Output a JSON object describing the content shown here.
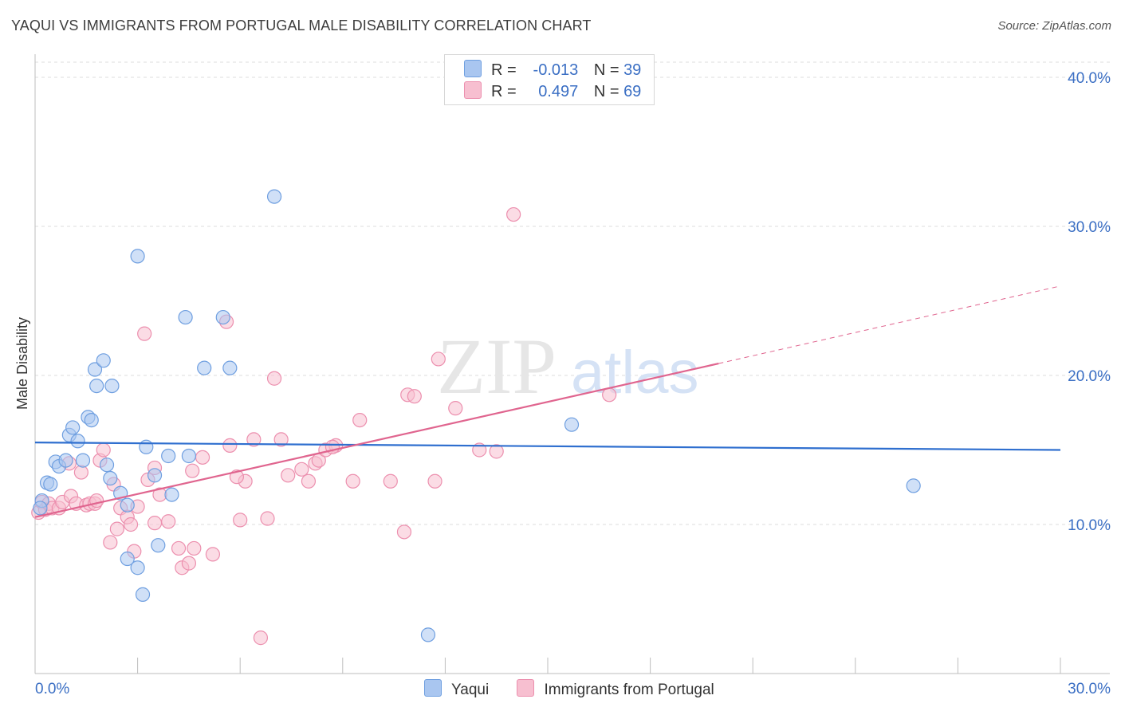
{
  "title": "YAQUI VS IMMIGRANTS FROM PORTUGAL MALE DISABILITY CORRELATION CHART",
  "source": "Source: ZipAtlas.com",
  "watermark": {
    "zip": "ZIP",
    "atlas": "atlas"
  },
  "legend": {
    "rows": [
      {
        "r_label": "R =",
        "r_value": "-0.013",
        "n_label": "N =",
        "n_value": "39",
        "color": "#a9c6f0",
        "border": "#6f9fe0"
      },
      {
        "r_label": "R =",
        "r_value": "0.497",
        "n_label": "N =",
        "n_value": "69",
        "color": "#f7bfd0",
        "border": "#ec8fae"
      }
    ]
  },
  "bottom_legend": [
    {
      "label": "Yaqui",
      "color": "#a9c6f0",
      "border": "#6f9fe0"
    },
    {
      "label": "Immigrants from Portugal",
      "color": "#f7bfd0",
      "border": "#ec8fae"
    }
  ],
  "chart_data": {
    "type": "scatter",
    "title": "YAQUI VS IMMIGRANTS FROM PORTUGAL MALE DISABILITY CORRELATION CHART",
    "xlabel": "",
    "ylabel": "Male Disability",
    "xlim": [
      0,
      30
    ],
    "ylim": [
      0,
      40
    ],
    "x_tick_labels": [
      "0.0%",
      "30.0%"
    ],
    "y_tick_labels": [
      "10.0%",
      "20.0%",
      "30.0%",
      "40.0%"
    ],
    "y_ticks": [
      10,
      20,
      30,
      40
    ],
    "grid": true,
    "series": [
      {
        "name": "Yaqui",
        "color": "#6f9fe0",
        "fill": "#a9c6f0",
        "trend": {
          "x": [
            0,
            30
          ],
          "y": [
            15.5,
            15.0
          ],
          "color": "#2f6fcf"
        },
        "points": [
          [
            0.2,
            11.6
          ],
          [
            0.35,
            12.8
          ],
          [
            0.45,
            12.7
          ],
          [
            0.6,
            14.2
          ],
          [
            0.7,
            13.9
          ],
          [
            0.9,
            14.3
          ],
          [
            1.0,
            16.0
          ],
          [
            1.1,
            16.5
          ],
          [
            1.25,
            15.6
          ],
          [
            1.4,
            14.3
          ],
          [
            1.55,
            17.2
          ],
          [
            1.65,
            17.0
          ],
          [
            1.75,
            20.4
          ],
          [
            1.8,
            19.3
          ],
          [
            2.0,
            21.0
          ],
          [
            2.1,
            14.0
          ],
          [
            2.2,
            13.1
          ],
          [
            2.25,
            19.3
          ],
          [
            2.5,
            12.1
          ],
          [
            2.7,
            11.3
          ],
          [
            2.7,
            7.7
          ],
          [
            3.0,
            7.1
          ],
          [
            3.0,
            28.0
          ],
          [
            3.15,
            5.3
          ],
          [
            3.25,
            15.2
          ],
          [
            3.5,
            13.3
          ],
          [
            3.6,
            8.6
          ],
          [
            3.9,
            14.6
          ],
          [
            4.0,
            12.0
          ],
          [
            4.4,
            23.9
          ],
          [
            4.5,
            14.6
          ],
          [
            4.95,
            20.5
          ],
          [
            5.5,
            23.9
          ],
          [
            5.7,
            20.5
          ],
          [
            7.0,
            32.0
          ],
          [
            11.5,
            2.6
          ],
          [
            15.7,
            16.7
          ],
          [
            25.7,
            12.6
          ],
          [
            0.15,
            11.1
          ]
        ]
      },
      {
        "name": "Immigrants from Portugal",
        "color": "#ec8fae",
        "fill": "#f7bfd0",
        "trend": {
          "x": [
            0,
            20
          ],
          "y": [
            10.5,
            20.8
          ],
          "color": "#e0658f",
          "dash_to_x": 30,
          "dash_to_y": 26.0
        },
        "points": [
          [
            0.1,
            10.8
          ],
          [
            0.2,
            11.5
          ],
          [
            0.3,
            11.0
          ],
          [
            0.4,
            11.4
          ],
          [
            0.5,
            11.1
          ],
          [
            0.7,
            11.1
          ],
          [
            0.8,
            11.5
          ],
          [
            1.0,
            14.1
          ],
          [
            1.05,
            11.9
          ],
          [
            1.2,
            11.4
          ],
          [
            1.35,
            13.5
          ],
          [
            1.5,
            11.3
          ],
          [
            1.6,
            11.4
          ],
          [
            1.75,
            11.4
          ],
          [
            1.8,
            11.6
          ],
          [
            1.9,
            14.3
          ],
          [
            2.0,
            15.0
          ],
          [
            2.2,
            8.8
          ],
          [
            2.3,
            12.7
          ],
          [
            2.4,
            9.7
          ],
          [
            2.5,
            11.1
          ],
          [
            2.7,
            10.5
          ],
          [
            2.8,
            10.0
          ],
          [
            2.9,
            8.2
          ],
          [
            3.0,
            11.2
          ],
          [
            3.2,
            22.8
          ],
          [
            3.3,
            13.0
          ],
          [
            3.5,
            13.8
          ],
          [
            3.5,
            10.1
          ],
          [
            3.65,
            12.0
          ],
          [
            3.9,
            10.2
          ],
          [
            4.2,
            8.4
          ],
          [
            4.3,
            7.1
          ],
          [
            4.5,
            7.4
          ],
          [
            4.6,
            13.6
          ],
          [
            4.65,
            8.4
          ],
          [
            4.9,
            14.5
          ],
          [
            5.2,
            8.0
          ],
          [
            5.6,
            23.6
          ],
          [
            5.7,
            15.3
          ],
          [
            6.0,
            10.3
          ],
          [
            6.15,
            12.9
          ],
          [
            6.4,
            15.7
          ],
          [
            6.6,
            2.4
          ],
          [
            6.8,
            10.4
          ],
          [
            7.0,
            19.8
          ],
          [
            7.2,
            15.7
          ],
          [
            7.4,
            13.3
          ],
          [
            7.8,
            13.7
          ],
          [
            8.0,
            12.9
          ],
          [
            8.2,
            14.1
          ],
          [
            8.3,
            14.3
          ],
          [
            8.5,
            15.0
          ],
          [
            8.8,
            15.3
          ],
          [
            9.3,
            12.9
          ],
          [
            9.5,
            17.0
          ],
          [
            10.4,
            12.9
          ],
          [
            10.8,
            9.5
          ],
          [
            10.9,
            18.7
          ],
          [
            11.1,
            18.6
          ],
          [
            11.7,
            12.9
          ],
          [
            11.8,
            21.1
          ],
          [
            12.3,
            17.8
          ],
          [
            13.0,
            15.0
          ],
          [
            13.5,
            14.9
          ],
          [
            14.0,
            30.8
          ],
          [
            16.8,
            18.7
          ],
          [
            8.7,
            15.2
          ],
          [
            5.9,
            13.2
          ]
        ]
      }
    ]
  }
}
